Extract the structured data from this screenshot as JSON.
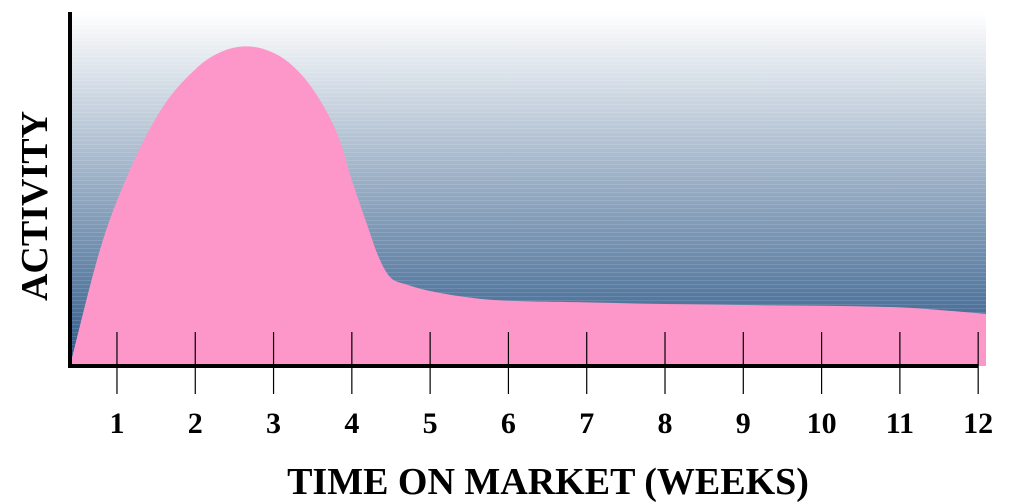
{
  "chart_data": {
    "type": "area",
    "xlabel": "TIME ON MARKET (WEEKS)",
    "ylabel": "ACTIVITY",
    "x_ticks": [
      "1",
      "2",
      "3",
      "4",
      "5",
      "6",
      "7",
      "8",
      "9",
      "10",
      "11",
      "12"
    ],
    "xlim": [
      0.4,
      12.1
    ],
    "ylim": [
      0,
      100
    ],
    "grid": false,
    "y_ticks_shown": false,
    "series": [
      {
        "x": [
          0.4,
          0.8,
          1.2,
          1.6,
          2.0,
          2.3,
          2.6,
          2.9,
          3.2,
          3.5,
          3.8,
          4.0,
          4.2,
          4.35,
          4.5,
          4.7,
          5.0,
          5.5,
          6.0,
          7.0,
          8.0,
          9.0,
          10.0,
          11.0,
          11.6,
          12.1
        ],
        "values": [
          0,
          37,
          62,
          80,
          91,
          96,
          98,
          97,
          93,
          85,
          72,
          57,
          43,
          33,
          27,
          25,
          23,
          21,
          20,
          19.5,
          19,
          18.7,
          18.5,
          18,
          17,
          16
        ]
      }
    ],
    "colors": {
      "area": "#fd96c9",
      "bg_top": "#ffffff",
      "bg_bottom": "#2c5888",
      "axis": "#000000"
    }
  }
}
